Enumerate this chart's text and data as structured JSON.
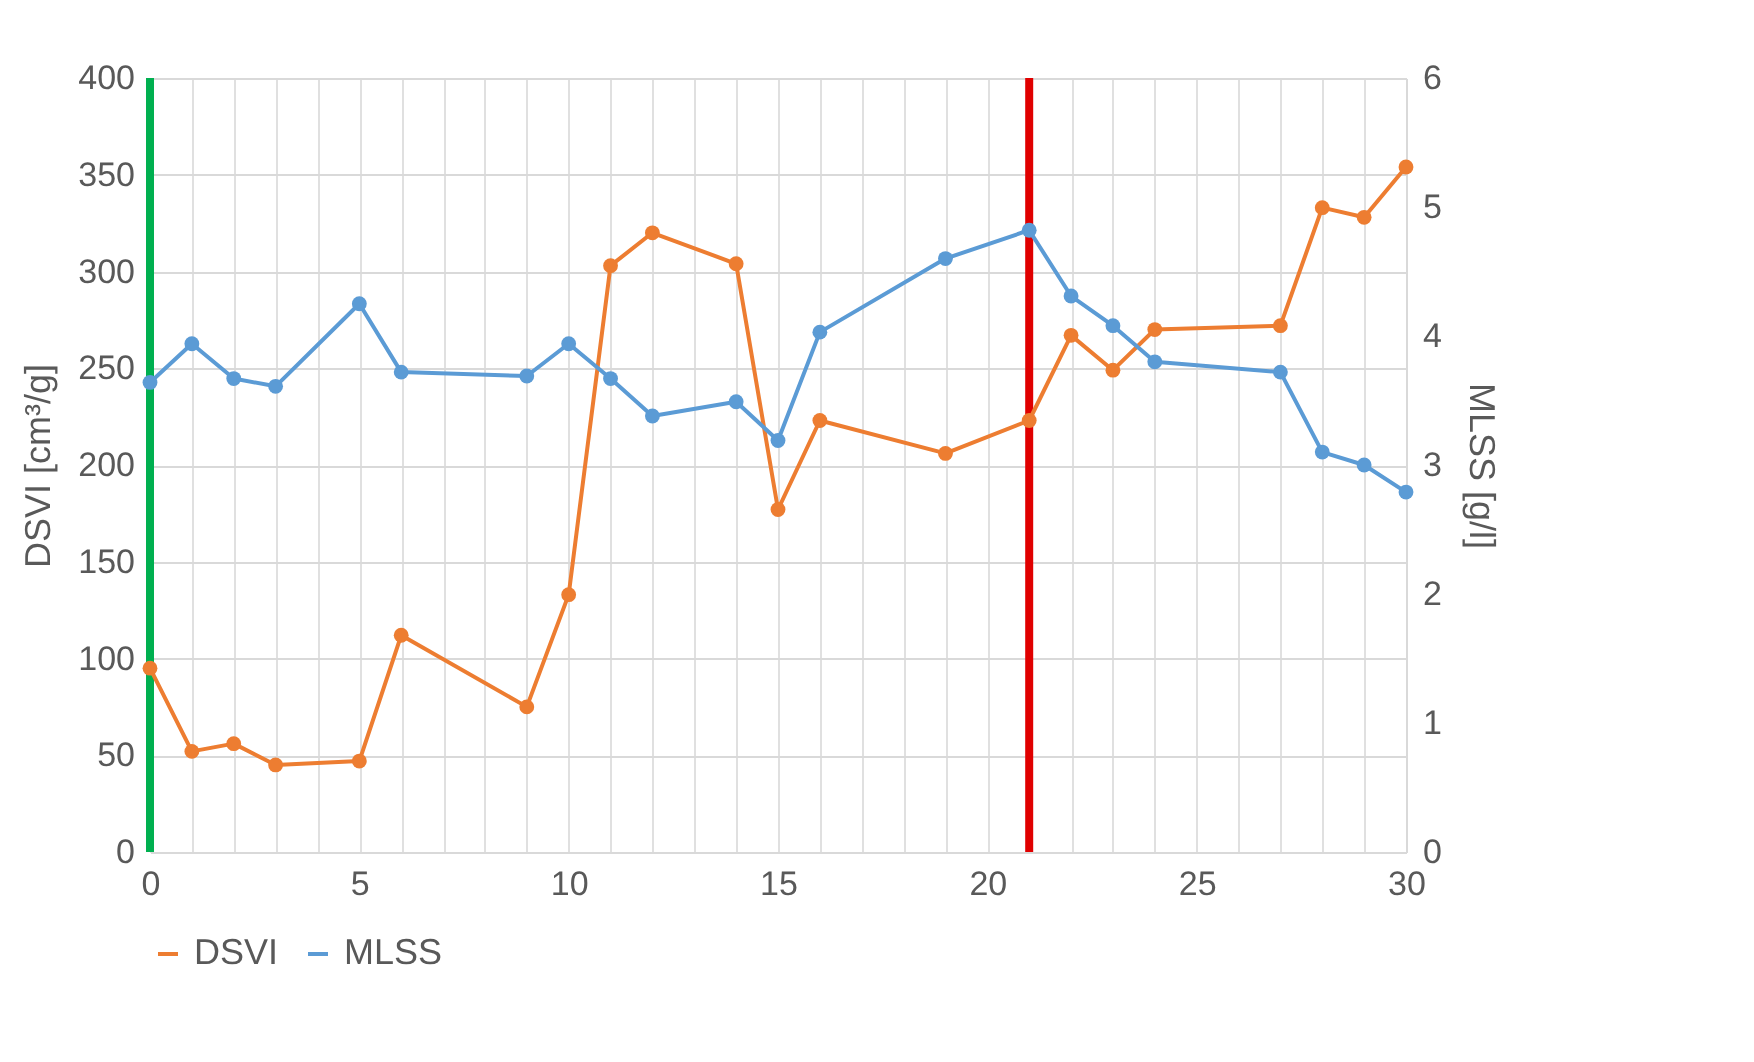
{
  "chart_data": {
    "type": "line",
    "xlabel": null,
    "ylabel": "DSVI [cm³/g]",
    "y2label": "MLSS [g/l]",
    "x": [
      0,
      1,
      2,
      3,
      5,
      6,
      9,
      10,
      11,
      12,
      14,
      15,
      16,
      19,
      21,
      22,
      23,
      24,
      27,
      28,
      29,
      30
    ],
    "series": [
      {
        "name": "DSVI",
        "color": "#ed7d31",
        "values": [
          95,
          52,
          56,
          45,
          47,
          112,
          75,
          133,
          303,
          320,
          304,
          177,
          223,
          206,
          223,
          267,
          249,
          270,
          272,
          333,
          328,
          354
        ]
      },
      {
        "name": "MLSS",
        "color": "#5b9bd5",
        "axis": "y2",
        "values": [
          3.64,
          3.94,
          3.67,
          3.61,
          4.25,
          3.72,
          3.69,
          3.94,
          3.67,
          3.38,
          3.49,
          3.19,
          4.03,
          4.6,
          4.82,
          4.31,
          4.08,
          3.8,
          3.72,
          3.1,
          3.0,
          2.79
        ]
      }
    ],
    "xlim": [
      0,
      30
    ],
    "xticks": [
      0,
      {
        "value": 1,
        "label": null
      },
      {
        "value": 2,
        "label": null
      },
      {
        "value": 3,
        "label": null
      },
      {
        "value": 4,
        "label": null
      },
      5,
      {
        "value": 6,
        "label": null
      },
      {
        "value": 7,
        "label": null
      },
      {
        "value": 8,
        "label": null
      },
      {
        "value": 9,
        "label": null
      },
      10,
      {
        "value": 11,
        "label": null
      },
      {
        "value": 12,
        "label": null
      },
      {
        "value": 13,
        "label": null
      },
      {
        "value": 14,
        "label": null
      },
      15,
      {
        "value": 16,
        "label": null
      },
      {
        "value": 17,
        "label": null
      },
      {
        "value": 18,
        "label": null
      },
      {
        "value": 19,
        "label": null
      },
      20,
      {
        "value": 21,
        "label": null
      },
      {
        "value": 22,
        "label": null
      },
      {
        "value": 23,
        "label": null
      },
      {
        "value": 24,
        "label": null
      },
      25,
      {
        "value": 26,
        "label": null
      },
      {
        "value": 27,
        "label": null
      },
      {
        "value": 28,
        "label": null
      },
      {
        "value": 29,
        "label": null
      },
      30
    ],
    "ylim": [
      0,
      400
    ],
    "yticks": [
      0,
      50,
      100,
      150,
      200,
      250,
      300,
      350,
      400
    ],
    "y2lim": [
      0,
      6
    ],
    "y2ticks": [
      0,
      1,
      2,
      3,
      4,
      5,
      6
    ],
    "ref_lines": [
      {
        "axis": "x",
        "value": 0,
        "label": null,
        "color": "#00b050"
      },
      {
        "axis": "x",
        "value": 21,
        "label": null,
        "color": "#e00000"
      }
    ],
    "grid": true,
    "legend": "bottom",
    "marker": "circle",
    "line_style": "solid"
  }
}
